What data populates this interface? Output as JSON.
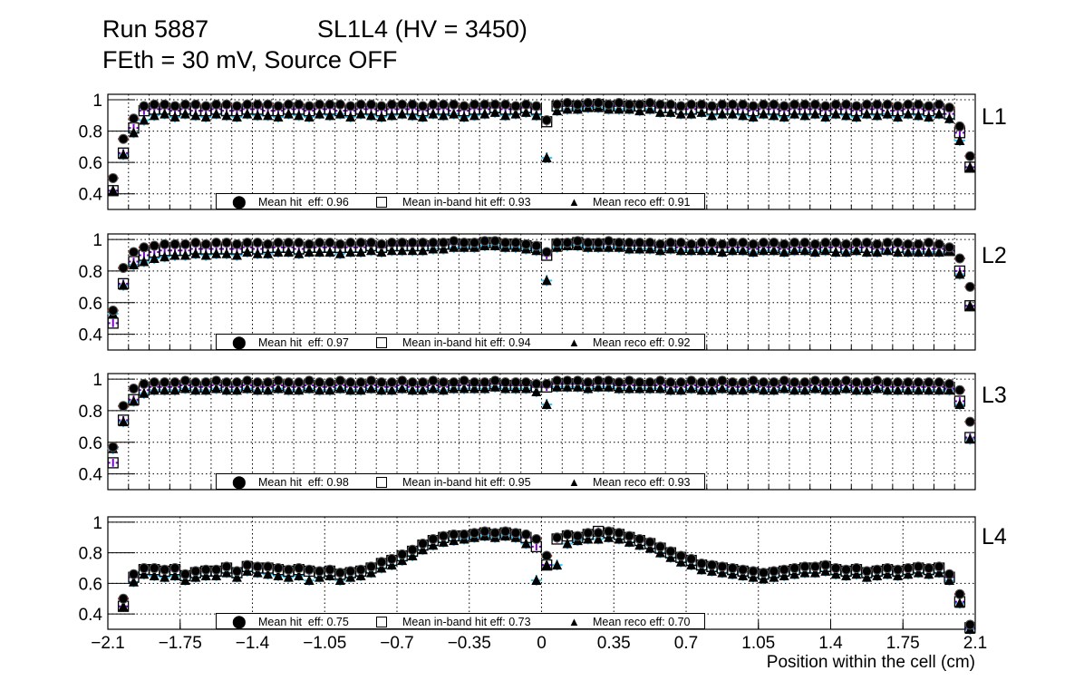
{
  "header": {
    "run": "Run 5887",
    "chamber": "SL1L4 (HV = 3450)",
    "conditions": "FEth = 30 mV, Source OFF"
  },
  "colors": {
    "hit_err": "#e00000",
    "inband_err": "#7a00cc",
    "reco_err": "#33ccff",
    "marker": "#000000"
  },
  "chart_data": {
    "type": "scatter",
    "xlabel": "Position within the cell (cm)",
    "xlim": [
      -2.1,
      2.1
    ],
    "ylim": [
      0.3,
      1.035
    ],
    "x_first_bin_center": -2.075,
    "bin_width": 0.05,
    "x_ticks": [
      "−2.1",
      "−1.75",
      "−1.4",
      "−1.05",
      "−0.7",
      "−0.35",
      "0",
      "0.35",
      "0.7",
      "1.05",
      "1.4",
      "1.75",
      "2.1"
    ],
    "x_tick_values": [
      -2.1,
      -1.75,
      -1.4,
      -1.05,
      -0.7,
      -0.35,
      0,
      0.35,
      0.7,
      1.05,
      1.4,
      1.75,
      2.1
    ],
    "y_ticks": [
      "0.4",
      "0.6",
      "0.8",
      "1"
    ],
    "y_tick_values": [
      0.4,
      0.6,
      0.8,
      1.0
    ],
    "grid": true,
    "legend_placement": "bottom-center",
    "legend_labels": {
      "hit": "Mean hit  eff: ",
      "inband": "Mean in-band hit eff: ",
      "reco": "Mean reco eff: "
    },
    "panels": [
      {
        "name": "L1",
        "legend": {
          "hit": "Mean hit  eff: 0.96",
          "inband": "Mean in-band hit eff: 0.93",
          "reco": "Mean reco eff: 0.91"
        },
        "hit": [
          0.5,
          0.75,
          0.88,
          0.96,
          0.97,
          0.97,
          0.96,
          0.97,
          0.97,
          0.96,
          0.97,
          0.97,
          0.96,
          0.97,
          0.97,
          0.97,
          0.96,
          0.97,
          0.97,
          0.96,
          0.97,
          0.97,
          0.97,
          0.96,
          0.97,
          0.97,
          0.96,
          0.97,
          0.97,
          0.97,
          0.96,
          0.97,
          0.97,
          0.97,
          0.96,
          0.97,
          0.97,
          0.97,
          0.97,
          0.96,
          0.97,
          0.96,
          0.87,
          0.97,
          0.98,
          0.97,
          0.98,
          0.98,
          0.97,
          0.98,
          0.97,
          0.97,
          0.98,
          0.97,
          0.97,
          0.96,
          0.97,
          0.97,
          0.96,
          0.97,
          0.97,
          0.97,
          0.96,
          0.97,
          0.97,
          0.96,
          0.97,
          0.97,
          0.97,
          0.96,
          0.97,
          0.97,
          0.96,
          0.97,
          0.97,
          0.97,
          0.96,
          0.97,
          0.97,
          0.96,
          0.97,
          0.95,
          0.83,
          0.64
        ],
        "inband": [
          0.42,
          0.66,
          0.82,
          0.93,
          0.94,
          0.94,
          0.93,
          0.94,
          0.93,
          0.93,
          0.94,
          0.93,
          0.93,
          0.94,
          0.94,
          0.93,
          0.93,
          0.94,
          0.94,
          0.93,
          0.94,
          0.94,
          0.93,
          0.93,
          0.94,
          0.94,
          0.93,
          0.94,
          0.94,
          0.94,
          0.93,
          0.94,
          0.94,
          0.93,
          0.93,
          0.94,
          0.94,
          0.95,
          0.94,
          0.94,
          0.95,
          0.94,
          0.86,
          0.96,
          0.96,
          0.96,
          0.96,
          0.97,
          0.96,
          0.96,
          0.96,
          0.96,
          0.96,
          0.95,
          0.95,
          0.94,
          0.94,
          0.95,
          0.94,
          0.94,
          0.94,
          0.94,
          0.93,
          0.94,
          0.94,
          0.93,
          0.94,
          0.94,
          0.94,
          0.93,
          0.94,
          0.94,
          0.93,
          0.94,
          0.94,
          0.93,
          0.93,
          0.94,
          0.94,
          0.93,
          0.94,
          0.91,
          0.79,
          0.57
        ],
        "reco": [
          0.42,
          0.65,
          0.79,
          0.87,
          0.9,
          0.91,
          0.89,
          0.91,
          0.9,
          0.89,
          0.91,
          0.9,
          0.89,
          0.91,
          0.9,
          0.9,
          0.89,
          0.91,
          0.9,
          0.89,
          0.91,
          0.9,
          0.91,
          0.89,
          0.91,
          0.9,
          0.89,
          0.9,
          0.91,
          0.9,
          0.89,
          0.91,
          0.9,
          0.91,
          0.89,
          0.9,
          0.91,
          0.92,
          0.9,
          0.91,
          0.92,
          0.9,
          0.63,
          0.93,
          0.94,
          0.94,
          0.95,
          0.95,
          0.94,
          0.94,
          0.94,
          0.93,
          0.94,
          0.92,
          0.92,
          0.91,
          0.91,
          0.92,
          0.9,
          0.91,
          0.91,
          0.9,
          0.89,
          0.91,
          0.9,
          0.89,
          0.91,
          0.9,
          0.91,
          0.89,
          0.91,
          0.9,
          0.89,
          0.91,
          0.9,
          0.91,
          0.89,
          0.91,
          0.9,
          0.89,
          0.91,
          0.88,
          0.74,
          0.57
        ]
      },
      {
        "name": "L2",
        "legend": {
          "hit": "Mean hit  eff: 0.97",
          "inband": "Mean in-band hit eff: 0.94",
          "reco": "Mean reco eff: 0.92"
        },
        "hit": [
          0.55,
          0.82,
          0.92,
          0.95,
          0.96,
          0.97,
          0.97,
          0.97,
          0.98,
          0.97,
          0.98,
          0.98,
          0.97,
          0.98,
          0.98,
          0.97,
          0.98,
          0.98,
          0.98,
          0.97,
          0.98,
          0.98,
          0.97,
          0.98,
          0.98,
          0.98,
          0.97,
          0.98,
          0.98,
          0.98,
          0.98,
          0.98,
          0.98,
          0.99,
          0.98,
          0.98,
          0.99,
          0.99,
          0.98,
          0.98,
          0.97,
          0.96,
          0.92,
          0.98,
          0.98,
          0.99,
          0.98,
          0.98,
          0.99,
          0.98,
          0.98,
          0.98,
          0.98,
          0.97,
          0.98,
          0.98,
          0.97,
          0.98,
          0.98,
          0.97,
          0.98,
          0.98,
          0.97,
          0.98,
          0.98,
          0.97,
          0.98,
          0.98,
          0.97,
          0.98,
          0.98,
          0.97,
          0.98,
          0.98,
          0.97,
          0.98,
          0.98,
          0.97,
          0.97,
          0.98,
          0.97,
          0.95,
          0.88,
          0.7
        ],
        "inband": [
          0.47,
          0.72,
          0.86,
          0.9,
          0.92,
          0.93,
          0.93,
          0.93,
          0.94,
          0.94,
          0.94,
          0.94,
          0.94,
          0.95,
          0.94,
          0.95,
          0.95,
          0.95,
          0.94,
          0.95,
          0.95,
          0.95,
          0.95,
          0.95,
          0.95,
          0.96,
          0.95,
          0.96,
          0.96,
          0.96,
          0.96,
          0.96,
          0.97,
          0.97,
          0.97,
          0.97,
          0.98,
          0.98,
          0.97,
          0.97,
          0.96,
          0.95,
          0.9,
          0.97,
          0.97,
          0.98,
          0.97,
          0.97,
          0.97,
          0.97,
          0.96,
          0.96,
          0.96,
          0.95,
          0.96,
          0.95,
          0.95,
          0.95,
          0.95,
          0.95,
          0.95,
          0.95,
          0.94,
          0.95,
          0.95,
          0.94,
          0.95,
          0.95,
          0.94,
          0.95,
          0.95,
          0.94,
          0.95,
          0.95,
          0.94,
          0.94,
          0.95,
          0.94,
          0.94,
          0.94,
          0.94,
          0.93,
          0.8,
          0.58
        ],
        "reco": [
          0.53,
          0.71,
          0.84,
          0.86,
          0.88,
          0.89,
          0.9,
          0.9,
          0.91,
          0.9,
          0.91,
          0.91,
          0.9,
          0.92,
          0.91,
          0.91,
          0.92,
          0.92,
          0.91,
          0.92,
          0.92,
          0.92,
          0.91,
          0.92,
          0.92,
          0.93,
          0.92,
          0.93,
          0.93,
          0.93,
          0.93,
          0.94,
          0.94,
          0.95,
          0.95,
          0.95,
          0.96,
          0.96,
          0.95,
          0.95,
          0.94,
          0.93,
          0.74,
          0.95,
          0.96,
          0.96,
          0.95,
          0.95,
          0.95,
          0.95,
          0.94,
          0.94,
          0.94,
          0.93,
          0.94,
          0.93,
          0.93,
          0.93,
          0.93,
          0.92,
          0.93,
          0.93,
          0.92,
          0.93,
          0.93,
          0.92,
          0.93,
          0.93,
          0.92,
          0.93,
          0.92,
          0.92,
          0.93,
          0.92,
          0.92,
          0.93,
          0.92,
          0.92,
          0.92,
          0.92,
          0.92,
          0.93,
          0.78,
          0.58
        ]
      },
      {
        "name": "L3",
        "legend": {
          "hit": "Mean hit  eff: 0.98",
          "inband": "Mean in-band hit eff: 0.95",
          "reco": "Mean reco eff: 0.93"
        },
        "hit": [
          0.57,
          0.83,
          0.94,
          0.97,
          0.98,
          0.98,
          0.98,
          0.99,
          0.98,
          0.98,
          0.99,
          0.98,
          0.98,
          0.99,
          0.98,
          0.98,
          0.99,
          0.98,
          0.98,
          0.99,
          0.98,
          0.98,
          0.99,
          0.98,
          0.98,
          0.99,
          0.98,
          0.98,
          0.99,
          0.98,
          0.98,
          0.99,
          0.98,
          0.98,
          0.99,
          0.98,
          0.98,
          0.99,
          0.98,
          0.98,
          0.98,
          0.97,
          0.97,
          0.99,
          0.99,
          0.99,
          0.98,
          0.99,
          0.99,
          0.98,
          0.99,
          0.98,
          0.98,
          0.99,
          0.98,
          0.98,
          0.99,
          0.98,
          0.98,
          0.99,
          0.98,
          0.98,
          0.99,
          0.98,
          0.98,
          0.99,
          0.98,
          0.98,
          0.99,
          0.98,
          0.98,
          0.99,
          0.98,
          0.98,
          0.99,
          0.98,
          0.98,
          0.98,
          0.98,
          0.98,
          0.98,
          0.97,
          0.93,
          0.73
        ],
        "inband": [
          0.47,
          0.74,
          0.87,
          0.93,
          0.95,
          0.95,
          0.95,
          0.96,
          0.95,
          0.95,
          0.96,
          0.95,
          0.95,
          0.96,
          0.95,
          0.95,
          0.96,
          0.95,
          0.95,
          0.96,
          0.95,
          0.95,
          0.96,
          0.95,
          0.95,
          0.96,
          0.95,
          0.95,
          0.96,
          0.95,
          0.95,
          0.96,
          0.95,
          0.96,
          0.96,
          0.96,
          0.96,
          0.97,
          0.96,
          0.96,
          0.96,
          0.95,
          0.95,
          0.97,
          0.97,
          0.97,
          0.96,
          0.97,
          0.97,
          0.96,
          0.96,
          0.96,
          0.96,
          0.96,
          0.95,
          0.95,
          0.96,
          0.95,
          0.95,
          0.96,
          0.95,
          0.95,
          0.96,
          0.95,
          0.95,
          0.96,
          0.95,
          0.95,
          0.96,
          0.95,
          0.95,
          0.96,
          0.95,
          0.95,
          0.96,
          0.95,
          0.95,
          0.95,
          0.95,
          0.95,
          0.95,
          0.94,
          0.86,
          0.63
        ],
        "reco": [
          0.56,
          0.73,
          0.86,
          0.91,
          0.93,
          0.93,
          0.93,
          0.94,
          0.93,
          0.93,
          0.94,
          0.93,
          0.93,
          0.94,
          0.93,
          0.93,
          0.94,
          0.93,
          0.93,
          0.94,
          0.93,
          0.93,
          0.94,
          0.93,
          0.93,
          0.94,
          0.93,
          0.93,
          0.94,
          0.93,
          0.93,
          0.94,
          0.93,
          0.94,
          0.94,
          0.94,
          0.94,
          0.95,
          0.94,
          0.94,
          0.94,
          0.92,
          0.84,
          0.95,
          0.95,
          0.95,
          0.94,
          0.95,
          0.95,
          0.94,
          0.94,
          0.94,
          0.94,
          0.94,
          0.93,
          0.93,
          0.94,
          0.93,
          0.93,
          0.94,
          0.93,
          0.93,
          0.94,
          0.93,
          0.93,
          0.94,
          0.93,
          0.93,
          0.94,
          0.93,
          0.93,
          0.94,
          0.93,
          0.93,
          0.94,
          0.93,
          0.93,
          0.93,
          0.93,
          0.93,
          0.93,
          0.93,
          0.84,
          0.62
        ]
      },
      {
        "name": "L4",
        "legend": {
          "hit": "Mean hit  eff: 0.75",
          "inband": "Mean in-band hit eff: 0.73",
          "reco": "Mean reco eff: 0.70"
        },
        "hit": [
          null,
          0.5,
          0.66,
          0.7,
          0.7,
          0.69,
          0.7,
          0.66,
          0.68,
          0.69,
          0.69,
          0.71,
          0.68,
          0.72,
          0.71,
          0.71,
          0.7,
          0.69,
          0.7,
          0.69,
          0.68,
          0.69,
          0.67,
          0.68,
          0.69,
          0.71,
          0.74,
          0.76,
          0.79,
          0.82,
          0.86,
          0.89,
          0.91,
          0.92,
          0.92,
          0.93,
          0.94,
          0.93,
          0.94,
          0.93,
          0.92,
          0.89,
          0.78,
          0.9,
          0.92,
          0.91,
          0.93,
          0.93,
          0.94,
          0.93,
          0.91,
          0.89,
          0.87,
          0.84,
          0.81,
          0.78,
          0.76,
          0.73,
          0.72,
          0.71,
          0.7,
          0.69,
          0.68,
          0.67,
          0.68,
          0.69,
          0.7,
          0.71,
          0.71,
          0.72,
          0.7,
          0.69,
          0.7,
          0.68,
          0.69,
          0.7,
          0.69,
          0.7,
          0.71,
          0.7,
          0.71,
          0.66,
          0.53,
          0.33
        ],
        "inband": [
          null,
          0.45,
          0.64,
          0.69,
          0.69,
          0.68,
          0.69,
          0.65,
          0.67,
          0.68,
          0.68,
          0.7,
          0.67,
          0.71,
          0.7,
          0.7,
          0.69,
          0.68,
          0.69,
          0.68,
          0.67,
          0.68,
          0.66,
          0.67,
          0.68,
          0.7,
          0.73,
          0.75,
          0.78,
          0.81,
          0.85,
          0.88,
          0.9,
          0.91,
          0.91,
          0.92,
          0.93,
          0.92,
          0.93,
          0.92,
          0.9,
          0.84,
          0.72,
          0.89,
          0.91,
          0.9,
          0.92,
          0.94,
          0.93,
          0.92,
          0.9,
          0.88,
          0.86,
          0.83,
          0.8,
          0.77,
          0.75,
          0.72,
          0.71,
          0.7,
          0.69,
          0.68,
          0.67,
          0.66,
          0.67,
          0.68,
          0.69,
          0.7,
          0.7,
          0.71,
          0.69,
          0.68,
          0.69,
          0.67,
          0.68,
          0.69,
          0.68,
          0.69,
          0.7,
          0.69,
          0.7,
          0.64,
          0.48,
          0.31
        ],
        "reco": [
          null,
          0.45,
          0.61,
          0.66,
          0.65,
          0.64,
          0.65,
          0.62,
          0.64,
          0.65,
          0.65,
          0.67,
          0.64,
          0.68,
          0.67,
          0.66,
          0.65,
          0.64,
          0.65,
          0.62,
          0.64,
          0.65,
          0.62,
          0.64,
          0.65,
          0.67,
          0.7,
          0.72,
          0.75,
          0.78,
          0.82,
          0.85,
          0.87,
          0.88,
          0.89,
          0.9,
          0.91,
          0.9,
          0.91,
          0.9,
          0.86,
          0.62,
          0.72,
          0.72,
          0.86,
          0.88,
          0.89,
          0.89,
          0.9,
          0.89,
          0.87,
          0.85,
          0.83,
          0.8,
          0.77,
          0.74,
          0.72,
          0.69,
          0.68,
          0.67,
          0.66,
          0.65,
          0.64,
          0.63,
          0.64,
          0.65,
          0.66,
          0.67,
          0.67,
          0.68,
          0.66,
          0.65,
          0.66,
          0.64,
          0.65,
          0.66,
          0.65,
          0.66,
          0.67,
          0.66,
          0.67,
          0.62,
          0.47,
          0.3
        ]
      }
    ]
  }
}
